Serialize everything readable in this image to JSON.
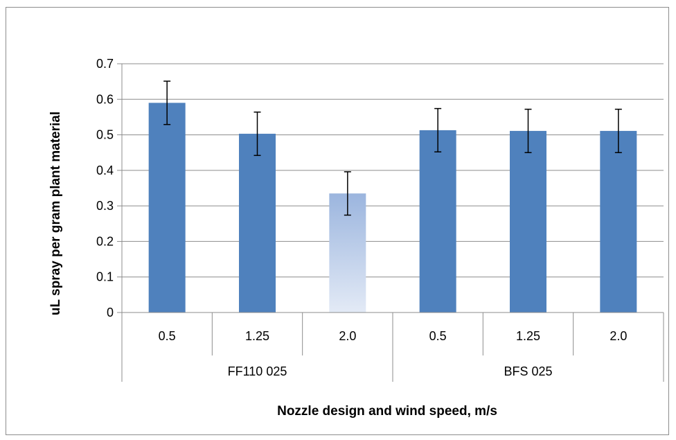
{
  "chart_data": {
    "type": "bar",
    "title": "",
    "xlabel": "Nozzle design and wind speed, m/s",
    "ylabel": "uL spray per gram plant material",
    "ylim": [
      0,
      0.7
    ],
    "yticks": [
      0,
      0.1,
      0.2,
      0.3,
      0.4,
      0.5,
      0.6,
      0.7
    ],
    "ytick_labels": [
      "0",
      "0.1",
      "0.2",
      "0.3",
      "0.4",
      "0.5",
      "0.6",
      "0.7"
    ],
    "categories": [
      "0.5",
      "1.25",
      "2.0",
      "0.5",
      "1.25",
      "2.0"
    ],
    "groups": [
      {
        "label": "FF110 025",
        "count": 3
      },
      {
        "label": "BFS 025",
        "count": 3
      }
    ],
    "values": [
      0.59,
      0.503,
      0.335,
      0.513,
      0.511,
      0.511
    ],
    "error": [
      0.061,
      0.061,
      0.061,
      0.061,
      0.061,
      0.061
    ],
    "grid": true,
    "legend": "none",
    "colors": {
      "bar": "#4f81bd",
      "highlight_top": "#9bb5de",
      "highlight_bottom": "#e3eaf6",
      "grid": "#8c8c8c",
      "axis": "#8c8c8c",
      "error_bar": "#000000"
    },
    "highlighted_index": 2
  }
}
